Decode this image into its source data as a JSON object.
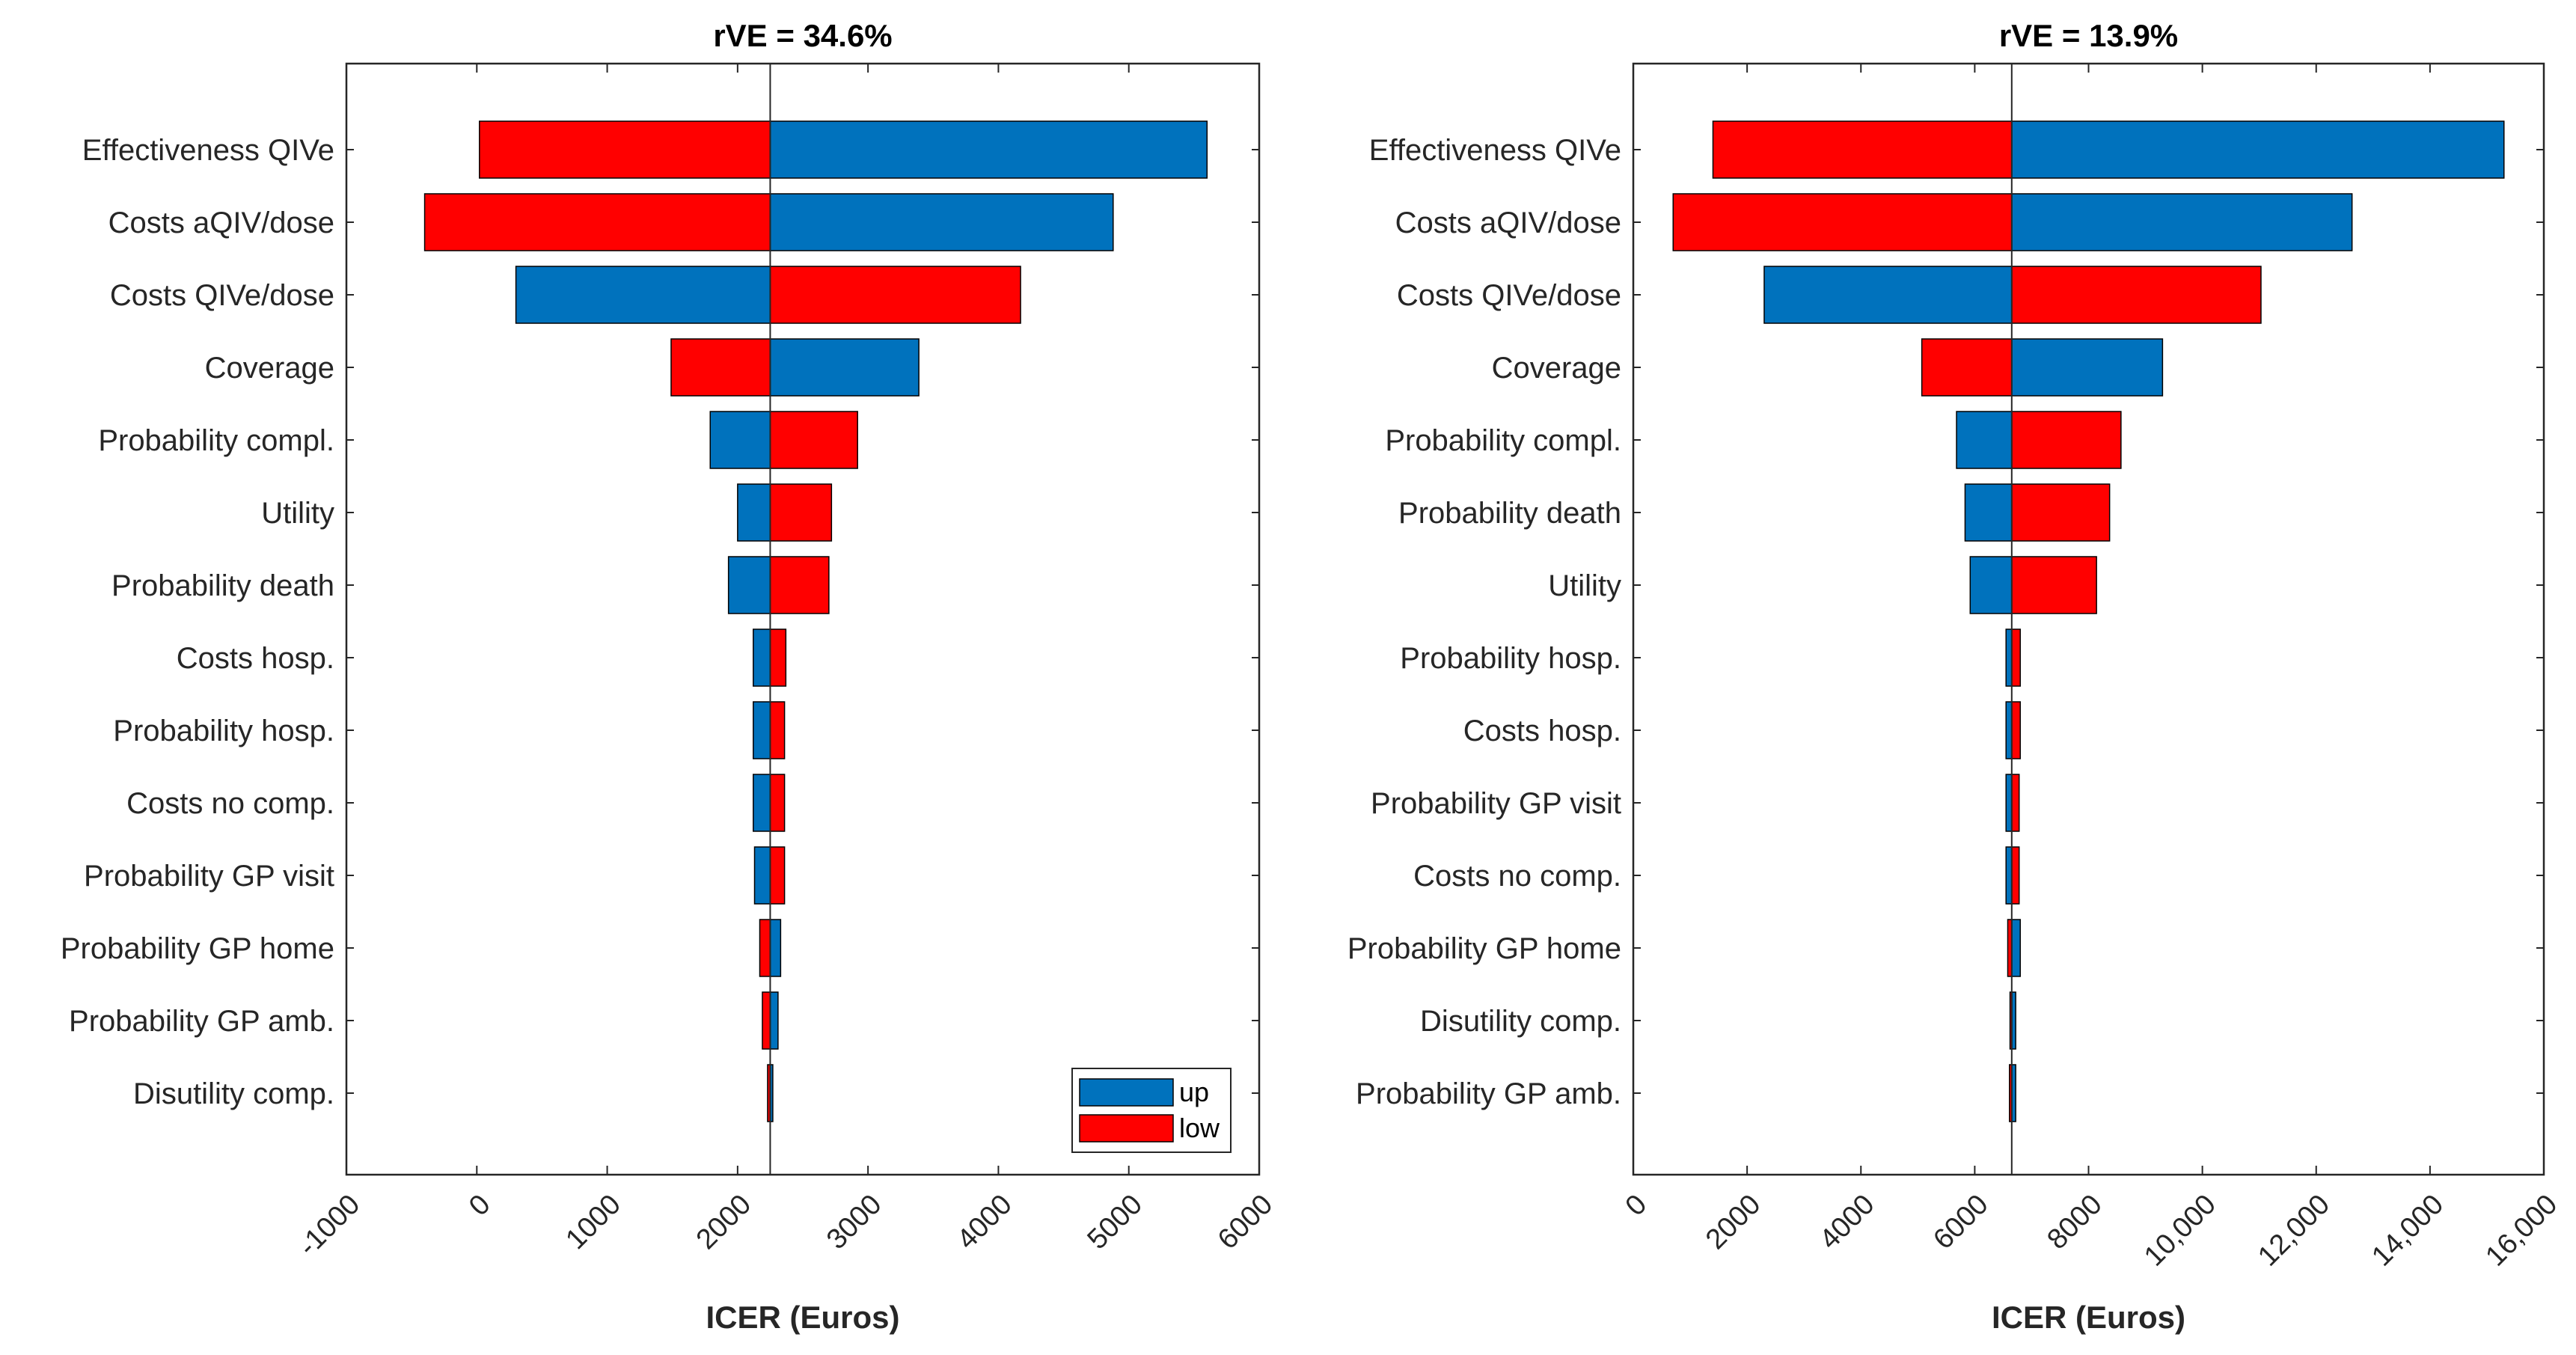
{
  "colors": {
    "up": "#0072BD",
    "low": "#FF0000",
    "axis": "#262626",
    "bar_edge": "#000000"
  },
  "chart_data": [
    {
      "type": "bar",
      "orientation": "horizontal",
      "subtype": "tornado",
      "title": "rVE = 34.6%",
      "xlabel": "ICER (Euros)",
      "ylabel": "",
      "xlim": [
        -1000,
        6000
      ],
      "xticks": [
        -1000,
        0,
        1000,
        2000,
        3000,
        4000,
        5000,
        6000
      ],
      "xtick_labels": [
        "-1000",
        "0",
        "1000",
        "2000",
        "3000",
        "4000",
        "5000",
        "6000"
      ],
      "base": 2250,
      "grid": false,
      "legend": {
        "location": "bottom-right",
        "entries": [
          "up",
          "low"
        ]
      },
      "categories": [
        "Effectiveness QIVe",
        "Costs aQIV/dose",
        "Costs QIVe/dose",
        "Coverage",
        "Probability compl.",
        "Utility",
        "Probability death",
        "Costs hosp.",
        "Probability hosp.",
        "Costs no comp.",
        "Probability GP visit",
        "Probability GP home",
        "Probability GP amb.",
        "Disutility comp."
      ],
      "series": [
        {
          "name": "up",
          "values": [
            5600,
            4880,
            300,
            3390,
            1790,
            2000,
            1930,
            2120,
            2120,
            2120,
            2130,
            2330,
            2310,
            2270
          ]
        },
        {
          "name": "low",
          "values": [
            20,
            -400,
            4170,
            1490,
            2920,
            2720,
            2700,
            2370,
            2360,
            2360,
            2360,
            2170,
            2190,
            2230
          ]
        }
      ]
    },
    {
      "type": "bar",
      "orientation": "horizontal",
      "subtype": "tornado",
      "title": "rVE = 13.9%",
      "xlabel": "ICER (Euros)",
      "ylabel": "",
      "xlim": [
        0,
        16000
      ],
      "xticks": [
        0,
        2000,
        4000,
        6000,
        8000,
        10000,
        12000,
        14000,
        16000
      ],
      "xtick_labels": [
        "0",
        "2000",
        "4000",
        "6000",
        "8000",
        "10,000",
        "12,000",
        "14,000",
        "16,000"
      ],
      "base": 6650,
      "grid": false,
      "legend": null,
      "categories": [
        "Effectiveness QIVe",
        "Costs aQIV/dose",
        "Costs QIVe/dose",
        "Coverage",
        "Probability compl.",
        "Probability death",
        "Utility",
        "Probability hosp.",
        "Costs hosp.",
        "Probability GP visit",
        "Costs no comp.",
        "Probability GP home",
        "Disutility comp.",
        "Probability GP amb."
      ],
      "series": [
        {
          "name": "up",
          "values": [
            15300,
            12630,
            2300,
            9300,
            5680,
            5830,
            5920,
            6550,
            6550,
            6550,
            6550,
            6800,
            6720,
            6720
          ]
        },
        {
          "name": "low",
          "values": [
            1400,
            700,
            11030,
            5070,
            8570,
            8370,
            8140,
            6800,
            6800,
            6780,
            6780,
            6580,
            6620,
            6610
          ]
        }
      ]
    }
  ]
}
